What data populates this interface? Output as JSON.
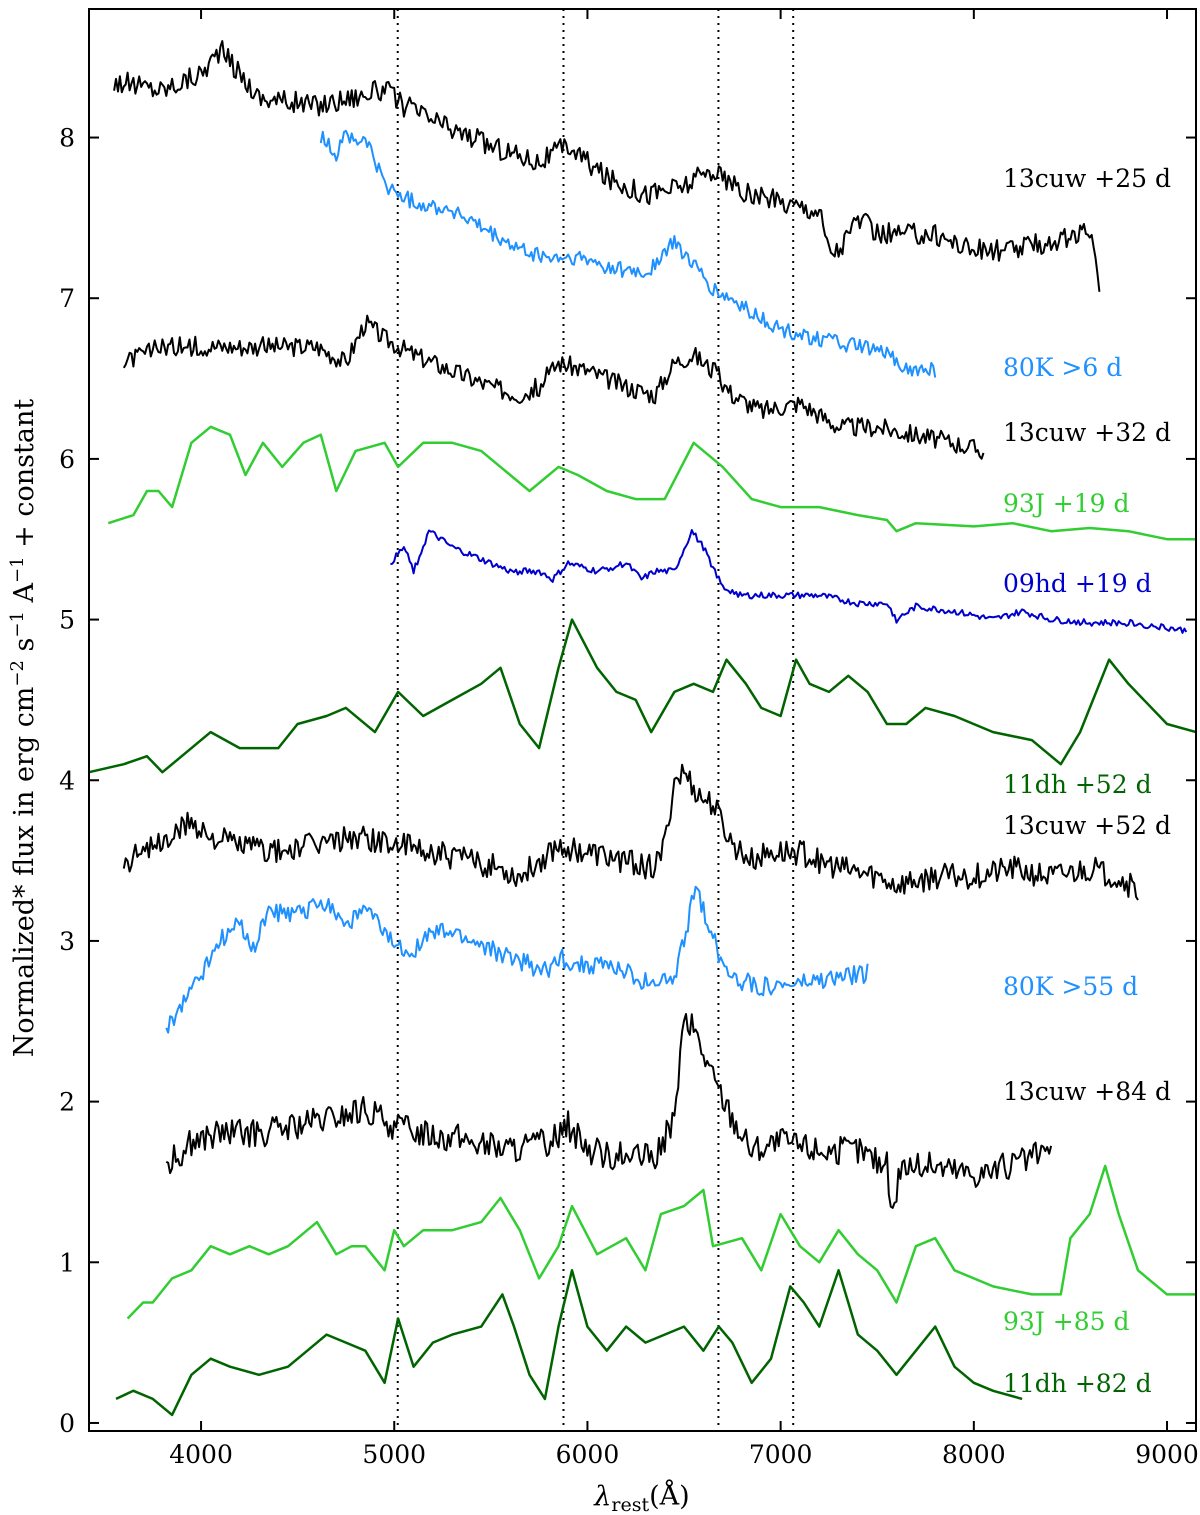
{
  "chart_data": {
    "type": "line",
    "xlabel": "λrest(Å)",
    "ylabel": "Normalized* flux in erg cm⁻² s⁻¹ A⁻¹ + constant",
    "xlim": [
      3420,
      9150
    ],
    "ylim": [
      -0.05,
      8.8
    ],
    "x_ticks": [
      4000,
      5000,
      6000,
      7000,
      8000,
      9000
    ],
    "y_ticks": [
      0,
      1,
      2,
      3,
      4,
      5,
      6,
      7,
      8
    ],
    "grid": false,
    "legend": "none",
    "vertical_reference_lines": [
      5018,
      5876,
      6678,
      7065
    ],
    "series": [
      {
        "name": "13cuw +25 d",
        "label": "13cuw +25 d",
        "color": "#000000",
        "x": [
          3550,
          3800,
          4000,
          4100,
          4300,
          4600,
          4950,
          5050,
          5300,
          5500,
          5750,
          5900,
          6100,
          6300,
          6500,
          6650,
          6800,
          7000,
          7200,
          7250,
          7300,
          7400,
          7500,
          7800,
          8000,
          8200,
          8400,
          8600,
          8650
        ],
        "y": [
          8.35,
          8.3,
          8.4,
          8.55,
          8.25,
          8.2,
          8.3,
          8.2,
          8.05,
          7.95,
          7.85,
          7.95,
          7.75,
          7.65,
          7.7,
          7.8,
          7.65,
          7.6,
          7.55,
          7.3,
          7.3,
          7.5,
          7.4,
          7.4,
          7.3,
          7.3,
          7.35,
          7.4,
          7.1
        ],
        "noise": 0.07
      },
      {
        "name": "80K >6 d",
        "label": "80K >6 d",
        "color": "#1e90ff",
        "x": [
          4620,
          4700,
          4750,
          4800,
          4850,
          4950,
          5100,
          5300,
          5500,
          5650,
          5800,
          5950,
          6100,
          6300,
          6450,
          6550,
          6650,
          6800,
          7000,
          7200,
          7400,
          7550,
          7620,
          7650,
          7800
        ],
        "y": [
          8.0,
          7.9,
          8.05,
          7.95,
          8.0,
          7.7,
          7.6,
          7.55,
          7.4,
          7.3,
          7.25,
          7.25,
          7.2,
          7.15,
          7.35,
          7.2,
          7.05,
          6.95,
          6.8,
          6.75,
          6.7,
          6.65,
          6.6,
          6.55,
          6.55
        ],
        "noise": 0.05
      },
      {
        "name": "13cuw +32 d",
        "label": "13cuw +32 d",
        "color": "#000000",
        "x": [
          3600,
          3800,
          4100,
          4400,
          4600,
          4750,
          4850,
          4950,
          5100,
          5300,
          5500,
          5650,
          5750,
          5850,
          6000,
          6200,
          6350,
          6450,
          6550,
          6650,
          6750,
          6900,
          7100,
          7300,
          7500,
          7700,
          7900,
          8050
        ],
        "y": [
          6.6,
          6.7,
          6.7,
          6.7,
          6.7,
          6.6,
          6.85,
          6.75,
          6.65,
          6.55,
          6.45,
          6.4,
          6.45,
          6.6,
          6.55,
          6.45,
          6.4,
          6.6,
          6.65,
          6.55,
          6.4,
          6.3,
          6.35,
          6.2,
          6.2,
          6.15,
          6.1,
          6.05
        ],
        "noise": 0.06
      },
      {
        "name": "93J +19 d",
        "label": "93J +19 d",
        "color": "#32cd32",
        "x": [
          3520,
          3650,
          3720,
          3780,
          3850,
          3950,
          4050,
          4150,
          4230,
          4320,
          4420,
          4530,
          4620,
          4700,
          4800,
          4950,
          5020,
          5150,
          5300,
          5450,
          5600,
          5700,
          5850,
          5950,
          6100,
          6250,
          6400,
          6550,
          6700,
          6850,
          7000,
          7200,
          7400,
          7550,
          7600,
          7700,
          8000,
          8200,
          8400,
          8600,
          8800,
          9000,
          9150
        ],
        "y": [
          5.6,
          5.65,
          5.8,
          5.8,
          5.7,
          6.1,
          6.2,
          6.15,
          5.9,
          6.1,
          5.95,
          6.1,
          6.15,
          5.8,
          6.05,
          6.1,
          5.95,
          6.1,
          6.1,
          6.05,
          5.9,
          5.8,
          5.95,
          5.9,
          5.8,
          5.75,
          5.75,
          6.1,
          5.95,
          5.75,
          5.7,
          5.7,
          5.65,
          5.62,
          5.55,
          5.6,
          5.58,
          5.6,
          5.55,
          5.57,
          5.55,
          5.5,
          5.5
        ],
        "noise": 0.0
      },
      {
        "name": "09hd +19 d",
        "label": "09hd +19 d",
        "color": "#0000cd",
        "x": [
          4980,
          5050,
          5100,
          5180,
          5300,
          5500,
          5600,
          5750,
          5820,
          5900,
          6050,
          6200,
          6280,
          6350,
          6450,
          6540,
          6600,
          6700,
          6800,
          7000,
          7200,
          7400,
          7550,
          7600,
          7700,
          7900,
          8100,
          8250,
          8400,
          8600,
          8800,
          9000,
          9100
        ],
        "y": [
          5.35,
          5.45,
          5.3,
          5.55,
          5.45,
          5.35,
          5.3,
          5.3,
          5.25,
          5.35,
          5.3,
          5.35,
          5.25,
          5.3,
          5.3,
          5.55,
          5.45,
          5.2,
          5.15,
          5.15,
          5.15,
          5.1,
          5.1,
          5.0,
          5.08,
          5.05,
          5.0,
          5.05,
          5.0,
          4.98,
          4.98,
          4.95,
          4.93
        ],
        "noise": 0.02
      },
      {
        "name": "11dh +52 d",
        "label": "11dh +52 d",
        "color": "#006400",
        "x": [
          3420,
          3600,
          3720,
          3800,
          3900,
          4050,
          4200,
          4400,
          4500,
          4650,
          4750,
          4900,
          5020,
          5150,
          5300,
          5450,
          5550,
          5650,
          5750,
          5850,
          5920,
          6050,
          6150,
          6250,
          6330,
          6450,
          6550,
          6650,
          6720,
          6820,
          6900,
          7000,
          7080,
          7150,
          7250,
          7350,
          7450,
          7550,
          7650,
          7750,
          7900,
          8100,
          8300,
          8450,
          8550,
          8700,
          8800,
          9000,
          9150
        ],
        "y": [
          4.05,
          4.1,
          4.15,
          4.05,
          4.15,
          4.3,
          4.2,
          4.2,
          4.35,
          4.4,
          4.45,
          4.3,
          4.55,
          4.4,
          4.5,
          4.6,
          4.7,
          4.35,
          4.2,
          4.7,
          5.0,
          4.7,
          4.55,
          4.5,
          4.3,
          4.55,
          4.6,
          4.55,
          4.75,
          4.6,
          4.45,
          4.4,
          4.75,
          4.6,
          4.55,
          4.65,
          4.55,
          4.35,
          4.35,
          4.45,
          4.4,
          4.3,
          4.25,
          4.1,
          4.3,
          4.75,
          4.6,
          4.35,
          4.3
        ],
        "noise": 0.0
      },
      {
        "name": "13cuw +52 d",
        "label": "13cuw +52 d",
        "color": "#000000",
        "x": [
          3600,
          3700,
          3800,
          3950,
          4050,
          4200,
          4400,
          4600,
          4800,
          5000,
          5200,
          5400,
          5550,
          5650,
          5750,
          5850,
          6000,
          6200,
          6350,
          6400,
          6450,
          6500,
          6580,
          6650,
          6750,
          6850,
          6950,
          7100,
          7300,
          7500,
          7600,
          7800,
          8000,
          8200,
          8400,
          8600,
          8750,
          8850
        ],
        "y": [
          3.45,
          3.6,
          3.6,
          3.75,
          3.65,
          3.6,
          3.55,
          3.6,
          3.65,
          3.6,
          3.55,
          3.5,
          3.45,
          3.4,
          3.5,
          3.6,
          3.55,
          3.5,
          3.45,
          3.6,
          4.0,
          4.05,
          3.9,
          3.85,
          3.6,
          3.5,
          3.55,
          3.55,
          3.45,
          3.4,
          3.35,
          3.4,
          3.4,
          3.45,
          3.4,
          3.45,
          3.4,
          3.3
        ],
        "noise": 0.08
      },
      {
        "name": "80K >55 d",
        "label": "80K >55 d",
        "color": "#1e90ff",
        "x": [
          3820,
          3900,
          3950,
          4000,
          4100,
          4200,
          4280,
          4350,
          4450,
          4550,
          4650,
          4750,
          4850,
          4950,
          5020,
          5100,
          5200,
          5300,
          5500,
          5600,
          5700,
          5800,
          5850,
          5950,
          6100,
          6300,
          6450,
          6520,
          6560,
          6600,
          6700,
          6800,
          6900,
          7000,
          7200,
          7450
        ],
        "y": [
          2.45,
          2.6,
          2.7,
          2.8,
          3.0,
          3.1,
          2.95,
          3.2,
          3.15,
          3.2,
          3.25,
          3.1,
          3.2,
          3.05,
          2.95,
          2.95,
          3.05,
          3.05,
          2.95,
          2.9,
          2.85,
          2.8,
          2.9,
          2.85,
          2.85,
          2.75,
          2.75,
          3.1,
          3.35,
          3.2,
          2.85,
          2.75,
          2.72,
          2.72,
          2.75,
          2.8
        ],
        "noise": 0.06
      },
      {
        "name": "13cuw +84 d",
        "label": "13cuw +84 d",
        "color": "#000000",
        "x": [
          3820,
          3950,
          4100,
          4300,
          4500,
          4700,
          4850,
          5000,
          5200,
          5400,
          5600,
          5800,
          5900,
          6000,
          6200,
          6350,
          6450,
          6500,
          6550,
          6650,
          6750,
          6850,
          7000,
          7200,
          7400,
          7550,
          7580,
          7620,
          7800,
          8000,
          8200,
          8400
        ],
        "y": [
          1.6,
          1.75,
          1.8,
          1.8,
          1.85,
          1.9,
          1.95,
          1.85,
          1.8,
          1.75,
          1.7,
          1.75,
          1.85,
          1.7,
          1.65,
          1.65,
          1.9,
          2.5,
          2.45,
          2.15,
          1.9,
          1.7,
          1.75,
          1.7,
          1.7,
          1.6,
          1.3,
          1.6,
          1.6,
          1.55,
          1.6,
          1.7
        ],
        "noise": 0.09
      },
      {
        "name": "93J +85 d",
        "label": "93J +85 d",
        "color": "#32cd32",
        "x": [
          3620,
          3700,
          3750,
          3850,
          3950,
          4050,
          4150,
          4250,
          4350,
          4450,
          4600,
          4700,
          4780,
          4850,
          4950,
          5000,
          5050,
          5150,
          5300,
          5450,
          5550,
          5650,
          5750,
          5850,
          5920,
          6050,
          6200,
          6300,
          6380,
          6500,
          6600,
          6650,
          6800,
          6900,
          7000,
          7100,
          7200,
          7300,
          7400,
          7500,
          7600,
          7700,
          7800,
          7900,
          8100,
          8300,
          8450,
          8500,
          8600,
          8680,
          8750,
          8850,
          9000,
          9150
        ],
        "y": [
          0.65,
          0.75,
          0.75,
          0.9,
          0.95,
          1.1,
          1.05,
          1.1,
          1.05,
          1.1,
          1.25,
          1.05,
          1.1,
          1.1,
          0.95,
          1.2,
          1.1,
          1.2,
          1.2,
          1.25,
          1.4,
          1.2,
          0.9,
          1.1,
          1.35,
          1.05,
          1.15,
          0.95,
          1.3,
          1.35,
          1.45,
          1.1,
          1.15,
          0.95,
          1.3,
          1.1,
          1.0,
          1.2,
          1.05,
          0.95,
          0.75,
          1.1,
          1.15,
          0.95,
          0.85,
          0.8,
          0.8,
          1.15,
          1.3,
          1.6,
          1.3,
          0.95,
          0.8,
          0.8
        ],
        "noise": 0.0
      },
      {
        "name": "11dh +82 d",
        "label": "11dh +82 d",
        "color": "#006400",
        "x": [
          3560,
          3650,
          3750,
          3850,
          3950,
          4050,
          4150,
          4300,
          4450,
          4550,
          4650,
          4750,
          4850,
          4950,
          5020,
          5100,
          5200,
          5300,
          5450,
          5560,
          5620,
          5700,
          5780,
          5850,
          5920,
          6000,
          6100,
          6200,
          6300,
          6400,
          6500,
          6600,
          6680,
          6750,
          6850,
          6950,
          7050,
          7120,
          7200,
          7300,
          7400,
          7500,
          7600,
          7700,
          7800,
          7900,
          8000,
          8100,
          8250
        ],
        "y": [
          0.15,
          0.2,
          0.15,
          0.05,
          0.3,
          0.4,
          0.35,
          0.3,
          0.35,
          0.45,
          0.55,
          0.5,
          0.45,
          0.25,
          0.65,
          0.35,
          0.5,
          0.55,
          0.6,
          0.8,
          0.6,
          0.3,
          0.15,
          0.6,
          0.95,
          0.6,
          0.45,
          0.6,
          0.5,
          0.55,
          0.6,
          0.45,
          0.6,
          0.5,
          0.25,
          0.4,
          0.85,
          0.75,
          0.6,
          0.95,
          0.55,
          0.45,
          0.3,
          0.45,
          0.6,
          0.35,
          0.25,
          0.2,
          0.15
        ],
        "noise": 0.0
      }
    ],
    "labels": [
      {
        "text": "13cuw +25 d",
        "color": "#000000"
      },
      {
        "text": "80K >6 d",
        "color": "#1e90ff"
      },
      {
        "text": "13cuw +32 d",
        "color": "#000000"
      },
      {
        "text": "93J +19 d",
        "color": "#32cd32"
      },
      {
        "text": "09hd +19 d",
        "color": "#0000cd"
      },
      {
        "text": "11dh +52 d",
        "color": "#006400"
      },
      {
        "text": "13cuw +52 d",
        "color": "#000000"
      },
      {
        "text": "80K >55 d",
        "color": "#1e90ff"
      },
      {
        "text": "13cuw +84 d",
        "color": "#000000"
      },
      {
        "text": "93J +85 d",
        "color": "#32cd32"
      },
      {
        "text": "11dh +82 d",
        "color": "#006400"
      }
    ]
  }
}
